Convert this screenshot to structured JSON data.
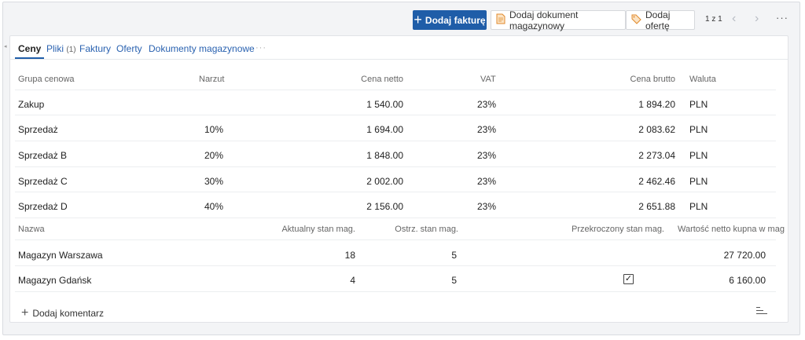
{
  "toolbar": {
    "add_invoice": "Dodaj fakturę",
    "add_document": "Dodaj dokument magazynowy",
    "add_offer": "Dodaj ofertę",
    "pager": "1 z 1",
    "prev": "‹",
    "next": "›",
    "more": "···",
    "accent": "#1f5da8"
  },
  "tabs": [
    {
      "label": "Ceny",
      "count": ""
    },
    {
      "label": "Pliki",
      "count": "(1)"
    },
    {
      "label": "Faktury",
      "count": ""
    },
    {
      "label": "Oferty",
      "count": ""
    },
    {
      "label": "Dokumenty magazynowe",
      "count": ""
    }
  ],
  "tabs_more": "···",
  "prices": {
    "headers": [
      "Grupa cenowa",
      "Narzut",
      "Cena netto",
      "VAT",
      "Cena brutto",
      "Waluta"
    ],
    "rows": [
      [
        "Zakup",
        "",
        "1 540.00",
        "23%",
        "1 894.20",
        "PLN"
      ],
      [
        "Sprzedaż",
        "10%",
        "1 694.00",
        "23%",
        "2 083.62",
        "PLN"
      ],
      [
        "Sprzedaż B",
        "20%",
        "1 848.00",
        "23%",
        "2 273.04",
        "PLN"
      ],
      [
        "Sprzedaż C",
        "30%",
        "2 002.00",
        "23%",
        "2 462.46",
        "PLN"
      ],
      [
        "Sprzedaż D",
        "40%",
        "2 156.00",
        "23%",
        "2 651.88",
        "PLN"
      ]
    ]
  },
  "stock": {
    "headers": [
      "Nazwa",
      "Aktualny stan mag.",
      "Ostrz. stan mag.",
      "Przekroczony stan mag.",
      "Wartość netto kupna w mag"
    ],
    "rows": [
      {
        "name": "Magazyn Warszawa",
        "current": "18",
        "warning": "5",
        "exceeded": false,
        "value": "27 720.00"
      },
      {
        "name": "Magazyn Gdańsk",
        "current": "4",
        "warning": "5",
        "exceeded": true,
        "value": "6 160.00"
      }
    ]
  },
  "footer": {
    "add_comment": "Dodaj komentarz"
  }
}
